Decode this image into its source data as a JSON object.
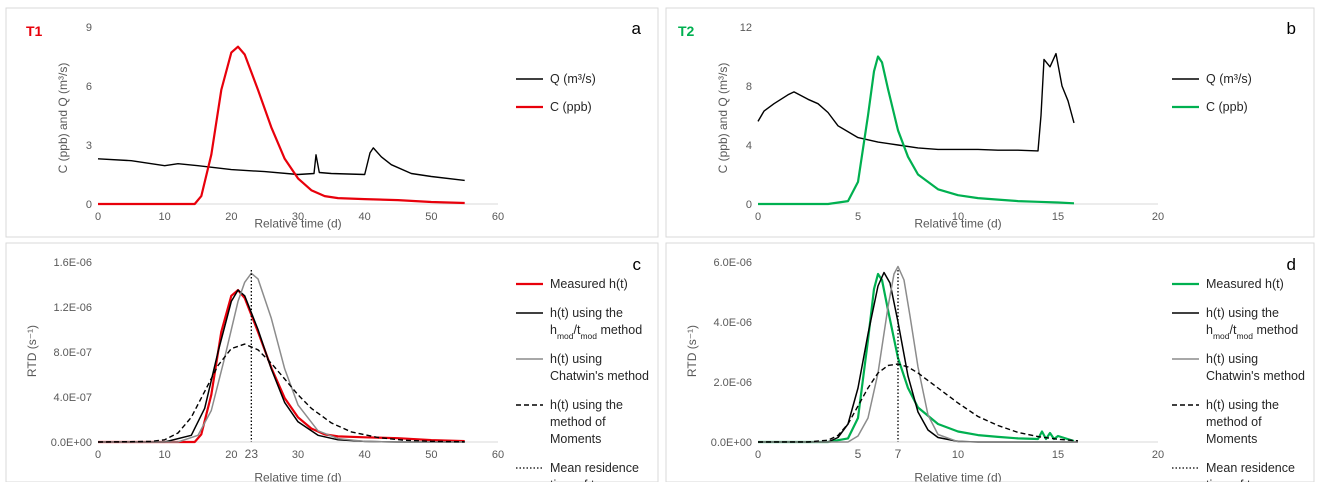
{
  "chart_data": [
    {
      "id": "a",
      "type": "line",
      "panel_letter": "a",
      "tag": "T1",
      "tag_color": "#e8000b",
      "xlabel": "Relative time (d)",
      "ylabel": "C (ppb) and Q (m³/s)",
      "xlim": [
        0,
        60
      ],
      "ylim": [
        0,
        9
      ],
      "xticks": [
        0,
        10,
        20,
        30,
        40,
        50,
        60
      ],
      "yticks": [
        0,
        3,
        6,
        9
      ],
      "ytick_labels": [
        "0",
        "3",
        "6",
        "9"
      ],
      "series": [
        {
          "name": "Q (m³/s)",
          "color": "#000000",
          "width": 1.4,
          "dash": "",
          "x": [
            0,
            5,
            10,
            12,
            15,
            20,
            25,
            30,
            32.4,
            32.7,
            33.2,
            35,
            40,
            40.8,
            41.3,
            42.5,
            44,
            47,
            50,
            55
          ],
          "y": [
            2.3,
            2.2,
            1.95,
            2.05,
            1.95,
            1.75,
            1.65,
            1.5,
            1.55,
            2.5,
            1.6,
            1.55,
            1.5,
            2.6,
            2.85,
            2.4,
            2.0,
            1.55,
            1.4,
            1.2
          ]
        },
        {
          "name": "C (ppb)",
          "color": "#e8000b",
          "width": 2.2,
          "dash": "",
          "x": [
            0,
            14.5,
            15.5,
            17,
            18.5,
            20,
            21,
            22,
            24,
            26,
            28,
            30,
            32,
            34,
            36,
            40,
            45,
            50,
            55
          ],
          "y": [
            0,
            0,
            0.4,
            2.5,
            5.8,
            7.7,
            8.0,
            7.6,
            5.8,
            3.9,
            2.3,
            1.3,
            0.7,
            0.4,
            0.3,
            0.25,
            0.2,
            0.1,
            0.05
          ]
        }
      ]
    },
    {
      "id": "b",
      "type": "line",
      "panel_letter": "b",
      "tag": "T2",
      "tag_color": "#00b050",
      "xlabel": "Relative time (d)",
      "ylabel": "C (ppb) and Q (m³/s)",
      "xlim": [
        0,
        20
      ],
      "ylim": [
        0,
        12
      ],
      "xticks": [
        0,
        5,
        10,
        15,
        20
      ],
      "yticks": [
        0,
        4,
        8,
        12
      ],
      "ytick_labels": [
        "0",
        "4",
        "8",
        "12"
      ],
      "series": [
        {
          "name": "Q (m³/s)",
          "color": "#000000",
          "width": 1.4,
          "dash": "",
          "x": [
            0,
            0.3,
            0.8,
            1.5,
            1.8,
            2.5,
            3.0,
            3.5,
            4.0,
            5.0,
            6.0,
            7.0,
            8.0,
            9.0,
            10.0,
            11.0,
            12.0,
            13.0,
            14.0,
            14.15,
            14.3,
            14.6,
            14.9,
            15.2,
            15.5,
            15.8
          ],
          "y": [
            5.6,
            6.3,
            6.8,
            7.4,
            7.6,
            7.1,
            6.8,
            6.2,
            5.3,
            4.5,
            4.2,
            4.0,
            3.8,
            3.7,
            3.7,
            3.7,
            3.65,
            3.65,
            3.6,
            6.0,
            9.8,
            9.3,
            10.2,
            8.0,
            7.0,
            5.5
          ]
        },
        {
          "name": "C (ppb)",
          "color": "#00b050",
          "width": 2.2,
          "dash": "",
          "x": [
            0,
            3.5,
            4.5,
            5.0,
            5.5,
            5.8,
            6.0,
            6.2,
            6.5,
            7.0,
            7.5,
            8.0,
            9.0,
            10.0,
            11.0,
            12.0,
            13.0,
            14.0,
            15.0,
            15.8
          ],
          "y": [
            0,
            0,
            0.2,
            1.5,
            6.0,
            9.0,
            10.0,
            9.6,
            7.8,
            5.0,
            3.2,
            2.0,
            1.0,
            0.6,
            0.4,
            0.3,
            0.2,
            0.15,
            0.1,
            0.05
          ]
        }
      ]
    },
    {
      "id": "c",
      "type": "line",
      "panel_letter": "c",
      "xlabel": "Relative time (d)",
      "ylabel": "RTD (s⁻¹)",
      "xlim": [
        0,
        60
      ],
      "ylim": [
        0,
        1.6e-06
      ],
      "xticks": [
        0,
        10,
        20,
        30,
        40,
        50,
        60
      ],
      "yticks": [
        0,
        4e-07,
        8e-07,
        1.2e-06,
        1.6e-06
      ],
      "ytick_labels": [
        "0.0E+00",
        "4.0E-07",
        "8.0E-07",
        "1.2E-06",
        "1.6E-06"
      ],
      "extra_xtick": {
        "value": 23,
        "label": "23"
      },
      "series": [
        {
          "name": "Measured h(t)",
          "color": "#e8000b",
          "width": 2.2,
          "dash": "",
          "x": [
            0,
            14.5,
            15.5,
            17,
            18.5,
            20,
            21,
            22,
            24,
            26,
            28,
            30,
            32,
            34,
            36,
            40,
            45,
            50,
            55
          ],
          "y": [
            0,
            0,
            6.8e-08,
            4.2e-07,
            9.8e-07,
            1.3e-06,
            1.35e-06,
            1.28e-06,
            9.8e-07,
            6.6e-07,
            3.9e-07,
            2.2e-07,
            1.2e-07,
            6.8e-08,
            5e-08,
            4.2e-08,
            3.4e-08,
            1.7e-08,
            8e-09
          ]
        },
        {
          "name": "h(t) using the hmod/tmod method",
          "color": "#000000",
          "width": 1.5,
          "dash": "",
          "x": [
            0,
            10,
            14,
            16,
            18,
            20,
            21,
            22,
            24,
            26,
            28,
            30,
            33,
            36,
            40,
            45,
            50,
            55
          ],
          "y": [
            0,
            0,
            6e-08,
            3e-07,
            8e-07,
            1.25e-06,
            1.35e-06,
            1.3e-06,
            1e-06,
            6.5e-07,
            3.5e-07,
            1.8e-07,
            6e-08,
            2e-08,
            5e-09,
            0,
            0,
            0
          ]
        },
        {
          "name": "h(t) using Chatwin's method",
          "color": "#8c8c8c",
          "width": 1.5,
          "dash": "",
          "x": [
            0,
            12,
            15,
            17,
            19,
            21,
            22,
            23,
            24,
            26,
            28,
            30,
            33,
            36,
            40,
            45,
            55
          ],
          "y": [
            0,
            0,
            6e-08,
            2.8e-07,
            7.5e-07,
            1.25e-06,
            1.42e-06,
            1.5e-06,
            1.45e-06,
            1.1e-06,
            6.5e-07,
            3.3e-07,
            1e-07,
            3e-08,
            5e-09,
            0,
            0
          ]
        },
        {
          "name": "h(t) using the method of Moments",
          "color": "#000000",
          "width": 1.4,
          "dash": "5,3",
          "x": [
            0,
            8,
            10,
            12,
            14,
            16,
            18,
            20,
            22,
            24,
            26,
            28,
            30,
            32,
            35,
            38,
            42,
            46,
            50,
            55
          ],
          "y": [
            0,
            5e-09,
            2e-08,
            8e-08,
            2.2e-07,
            4.5e-07,
            6.8e-07,
            8.3e-07,
            8.7e-07,
            8.2e-07,
            7e-07,
            5.6e-07,
            4.2e-07,
            3e-07,
            1.7e-07,
            9e-08,
            4e-08,
            1.5e-08,
            6e-09,
            2e-09
          ]
        },
        {
          "name": "Mean residence time of tracer",
          "color": "#000000",
          "width": 1.3,
          "dash": "1.5,2",
          "vline": 23
        }
      ]
    },
    {
      "id": "d",
      "type": "line",
      "panel_letter": "d",
      "xlabel": "Relative time (d)",
      "ylabel": "RTD (s⁻¹)",
      "xlim": [
        0,
        20
      ],
      "ylim": [
        0,
        6e-06
      ],
      "xticks": [
        0,
        5,
        10,
        15,
        20
      ],
      "xtick_labels": [
        "0",
        "",
        "10",
        "15",
        "20"
      ],
      "yticks": [
        0,
        2e-06,
        4e-06,
        6e-06
      ],
      "ytick_labels": [
        "0.0E+00",
        "2.0E-06",
        "4.0E-06",
        "6.0E-06"
      ],
      "extra_xtick": {
        "value": 7,
        "label": "7"
      },
      "extra_xtick_2": {
        "value": 5,
        "label": "5"
      },
      "series": [
        {
          "name": "Measured h(t)",
          "color": "#00b050",
          "width": 2.2,
          "dash": "",
          "x": [
            0,
            3.5,
            4.5,
            5.0,
            5.5,
            5.8,
            6.0,
            6.2,
            6.5,
            7.0,
            7.5,
            8.0,
            9.0,
            10.0,
            11.0,
            12.0,
            13.0,
            14.0,
            14.2,
            14.4,
            14.6,
            14.8,
            15.0,
            15.8
          ],
          "y": [
            0,
            0,
            1.2e-07,
            8e-07,
            3.4e-06,
            5.1e-06,
            5.6e-06,
            5.4e-06,
            4.4e-06,
            2.8e-06,
            1.8e-06,
            1.15e-06,
            6e-07,
            3.5e-07,
            2.3e-07,
            1.7e-07,
            1.2e-07,
            1e-07,
            3.5e-07,
            1e-07,
            3e-07,
            1e-07,
            2e-07,
            3e-08
          ]
        },
        {
          "name": "h(t) using the hmod/tmod method",
          "color": "#000000",
          "width": 1.5,
          "dash": "",
          "x": [
            0,
            3.5,
            4.0,
            4.5,
            5.0,
            5.5,
            6.0,
            6.3,
            6.6,
            7.0,
            7.5,
            8.0,
            8.5,
            9.0,
            10.0,
            11.0,
            16.0
          ],
          "y": [
            0,
            0,
            1.5e-07,
            6e-07,
            1.8e-06,
            3.6e-06,
            5.2e-06,
            5.65e-06,
            5.3e-06,
            4e-06,
            2.2e-06,
            1e-06,
            4e-07,
            1.5e-07,
            2e-08,
            0,
            0
          ]
        },
        {
          "name": "h(t) using Chatwin's method",
          "color": "#8c8c8c",
          "width": 1.5,
          "dash": "",
          "x": [
            0,
            4.5,
            5.0,
            5.5,
            6.0,
            6.5,
            6.8,
            7.0,
            7.3,
            7.6,
            8.0,
            8.5,
            9.0,
            10.0,
            16.0
          ],
          "y": [
            0,
            0,
            2e-07,
            8e-07,
            2.3e-06,
            4.5e-06,
            5.6e-06,
            5.85e-06,
            5.4e-06,
            4.2e-06,
            2.5e-06,
            9e-07,
            2.5e-07,
            1e-08,
            0
          ]
        },
        {
          "name": "h(t) using the method of Moments",
          "color": "#000000",
          "width": 1.4,
          "dash": "5,3",
          "x": [
            0,
            2.5,
            3.5,
            4.0,
            4.5,
            5.0,
            5.5,
            6.0,
            6.5,
            7.0,
            7.5,
            8.0,
            9.0,
            10.0,
            11.0,
            12.0,
            13.0,
            14.0,
            15.0,
            16.0
          ],
          "y": [
            0,
            5e-09,
            6e-08,
            2.2e-07,
            6e-07,
            1.2e-06,
            1.8e-06,
            2.3e-06,
            2.55e-06,
            2.6e-06,
            2.5e-06,
            2.3e-06,
            1.8e-06,
            1.3e-06,
            8.5e-07,
            5.5e-07,
            3.2e-07,
            1.8e-07,
            9e-08,
            4e-08
          ]
        },
        {
          "name": "Mean residence time of tracer",
          "color": "#000000",
          "width": 1.3,
          "dash": "1.5,2",
          "vline": 7
        }
      ]
    }
  ]
}
